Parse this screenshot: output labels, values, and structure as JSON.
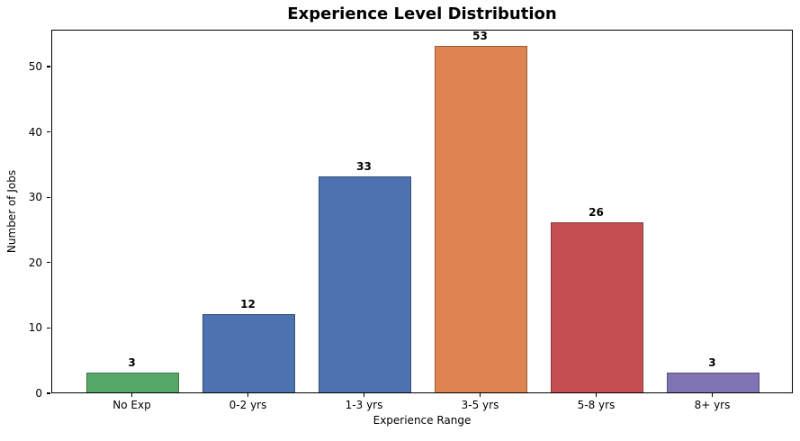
{
  "chart_data": {
    "type": "bar",
    "title": "Experience Level Distribution",
    "xlabel": "Experience Range",
    "ylabel": "Number of Jobs",
    "categories": [
      "No Exp",
      "0-2 yrs",
      "1-3 yrs",
      "3-5 yrs",
      "5-8 yrs",
      "8+ yrs"
    ],
    "values": [
      3,
      12,
      33,
      53,
      26,
      3
    ],
    "bar_fill_colors": [
      "#55a868",
      "#4c72b0",
      "#4c72b0",
      "#dd8452",
      "#c44e52",
      "#8172b3"
    ],
    "bar_edge_colors": [
      "#3b7548",
      "#35507b",
      "#35507b",
      "#9b5c39",
      "#893639",
      "#5a4f7d"
    ],
    "yticks": [
      0,
      10,
      20,
      30,
      40,
      50
    ],
    "ylim": [
      0,
      55.65
    ],
    "xlim": [
      -0.694,
      5.694
    ],
    "bar_width": 0.8,
    "grid": false,
    "legend_position": "none",
    "text_color": "#000000",
    "background_color": "#ffffff"
  }
}
